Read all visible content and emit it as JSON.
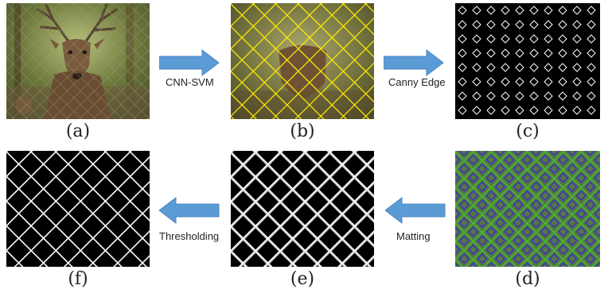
{
  "panels": [
    {
      "id": "a",
      "caption": "(a)",
      "content": "deer photo behind chain-link fence"
    },
    {
      "id": "b",
      "caption": "(b)",
      "content": "fence grid detected, yellow overlay"
    },
    {
      "id": "c",
      "caption": "(c)",
      "content": "edge map, white diamonds on black"
    },
    {
      "id": "d",
      "caption": "(d)",
      "content": "matting result, green and blue overlay"
    },
    {
      "id": "e",
      "caption": "(e)",
      "content": "soft fence alpha matte"
    },
    {
      "id": "f",
      "caption": "(f)",
      "content": "binary fence mask"
    }
  ],
  "steps": [
    {
      "label": "CNN-SVM",
      "from": "a",
      "to": "b",
      "direction": "right"
    },
    {
      "label": "Canny Edge",
      "from": "b",
      "to": "c",
      "direction": "right"
    },
    {
      "label": "Matting",
      "from": "d",
      "to": "e",
      "direction": "left"
    },
    {
      "label": "Thresholding",
      "from": "e",
      "to": "f",
      "direction": "left"
    }
  ],
  "colors": {
    "arrow": "#5b9bd5",
    "fence_overlay": "#ffee00",
    "matting_green": "#3ddc2c",
    "matting_blue": "#3a2fd0"
  }
}
